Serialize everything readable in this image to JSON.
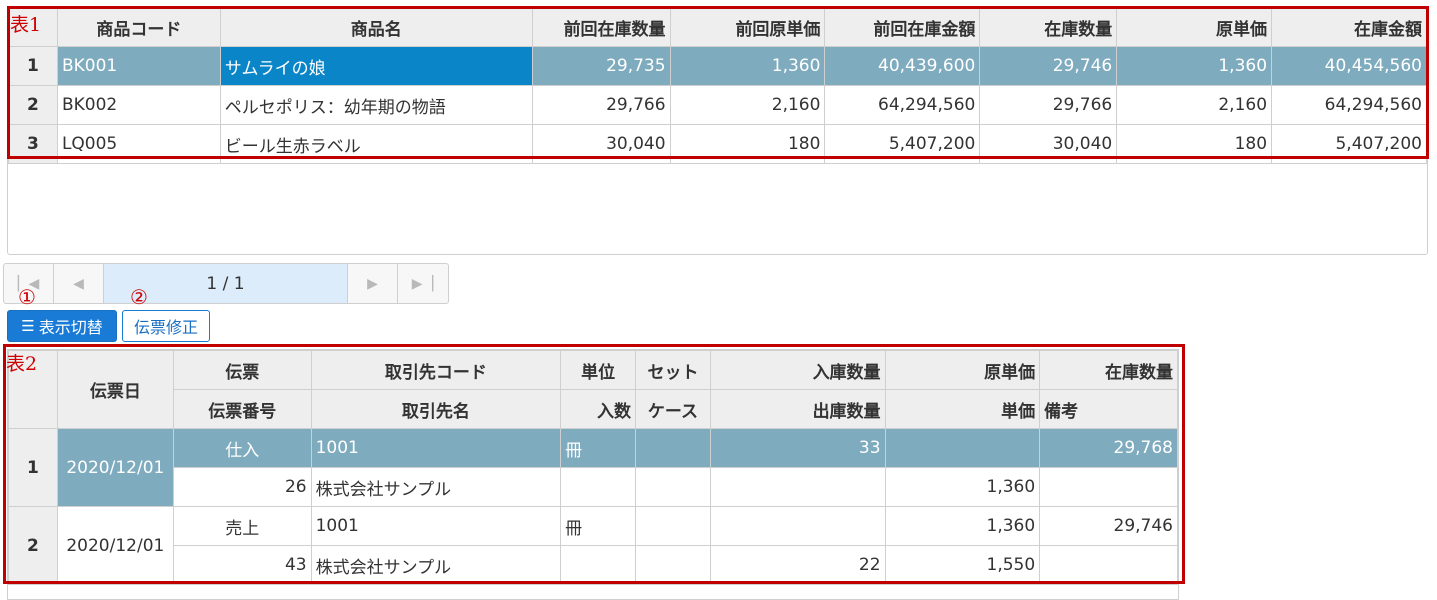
{
  "table1": {
    "label": "表1",
    "columns": [
      "",
      "商品コード",
      "商品名",
      "前回在庫数量",
      "前回原単価",
      "前回在庫金額",
      "在庫数量",
      "原単価",
      "在庫金額"
    ],
    "rows": [
      {
        "no": "1",
        "code": "BK001",
        "name": "サムライの娘",
        "prev_qty": "29,735",
        "prev_cost": "1,360",
        "prev_amount": "40,439,600",
        "qty": "29,746",
        "cost": "1,360",
        "amount": "40,454,560"
      },
      {
        "no": "2",
        "code": "BK002",
        "name": "ペルセポリス：幼年期の物語",
        "prev_qty": "29,766",
        "prev_cost": "2,160",
        "prev_amount": "64,294,560",
        "qty": "29,766",
        "cost": "2,160",
        "amount": "64,294,560"
      },
      {
        "no": "3",
        "code": "LQ005",
        "name": "ビール生赤ラベル",
        "prev_qty": "30,040",
        "prev_cost": "180",
        "prev_amount": "5,407,200",
        "qty": "30,040",
        "cost": "180",
        "amount": "5,407,200"
      }
    ]
  },
  "pager": {
    "info": "1 / 1"
  },
  "annotations": {
    "circle1": "①",
    "circle2": "②"
  },
  "toolbar": {
    "toggle_label": "表示切替",
    "edit_label": "伝票修正"
  },
  "table2": {
    "label": "表2",
    "header_top": [
      "伝票日",
      "伝票",
      "取引先コード",
      "単位",
      "セット",
      "入庫数量",
      "原単価",
      "在庫数量"
    ],
    "header_bottom": [
      "伝票番号",
      "取引先名",
      "入数",
      "ケース",
      "出庫数量",
      "単価",
      "備考"
    ],
    "rows": [
      {
        "no": "1",
        "date": "2020/12/01",
        "slip_type": "仕入",
        "partner_code": "1001",
        "unit": "冊",
        "set": "",
        "in_qty": "33",
        "cost": "",
        "stock_qty": "29,768",
        "slip_no": "26",
        "partner_name": "株式会社サンプル",
        "per_case": "",
        "case": "",
        "out_qty": "",
        "price": "1,360",
        "note": ""
      },
      {
        "no": "2",
        "date": "2020/12/01",
        "slip_type": "売上",
        "partner_code": "1001",
        "unit": "冊",
        "set": "",
        "in_qty": "",
        "cost": "1,360",
        "stock_qty": "29,746",
        "slip_no": "43",
        "partner_name": "株式会社サンプル",
        "per_case": "",
        "case": "",
        "out_qty": "22",
        "price": "1,550",
        "note": ""
      }
    ]
  },
  "colors": {
    "accent": "#0a85c8",
    "selected_row": "#7fabbf",
    "annotation": "#c00000",
    "header_bg": "#eeeeee"
  }
}
